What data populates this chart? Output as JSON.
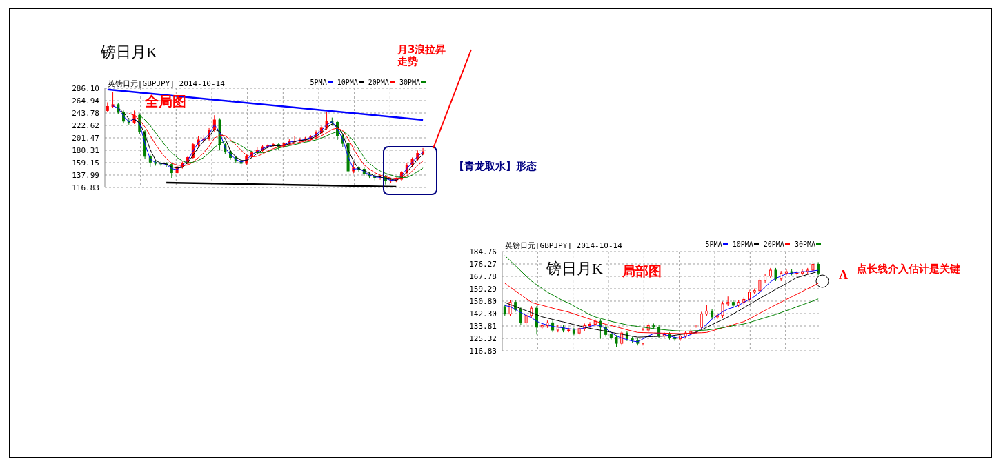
{
  "chart_data": [
    {
      "type": "candlestick",
      "title": "英镑日元[GBPJPY] 2014-10-14",
      "categories": [
        null,
        null,
        null,
        null,
        null,
        null,
        null,
        null,
        null,
        null,
        null,
        null,
        null,
        null,
        null,
        null,
        null,
        null,
        null,
        null,
        null,
        null,
        null,
        null,
        null,
        null,
        null,
        null,
        null,
        null,
        null,
        null,
        null,
        null,
        null,
        null,
        null,
        null,
        null,
        null,
        null,
        null,
        null,
        null,
        null,
        null,
        null,
        null,
        null,
        null,
        null,
        null,
        null,
        null,
        null,
        null,
        null,
        null,
        null,
        null
      ],
      "ohlc": [
        [
          248,
          262,
          245,
          255
        ],
        [
          255,
          280,
          252,
          258
        ],
        [
          258,
          261,
          242,
          245
        ],
        [
          245,
          248,
          226,
          230
        ],
        [
          230,
          233,
          224,
          228
        ],
        [
          228,
          248,
          225,
          240
        ],
        [
          240,
          243,
          208,
          212
        ],
        [
          212,
          215,
          165,
          170
        ],
        [
          170,
          173,
          152,
          160
        ],
        [
          160,
          163,
          154,
          158
        ],
        [
          158,
          161,
          153,
          157
        ],
        [
          157,
          160,
          152,
          156
        ],
        [
          156,
          159,
          133,
          142
        ],
        [
          142,
          155,
          139,
          152
        ],
        [
          152,
          161,
          149,
          158
        ],
        [
          158,
          171,
          155,
          168
        ],
        [
          168,
          193,
          165,
          190
        ],
        [
          190,
          205,
          186,
          198
        ],
        [
          198,
          206,
          194,
          200
        ],
        [
          200,
          218,
          197,
          215
        ],
        [
          215,
          240,
          212,
          232
        ],
        [
          232,
          235,
          180,
          190
        ],
        [
          190,
          193,
          174,
          178
        ],
        [
          178,
          181,
          164,
          168
        ],
        [
          168,
          171,
          158,
          162
        ],
        [
          162,
          166,
          150,
          158
        ],
        [
          158,
          173,
          155,
          170
        ],
        [
          170,
          179,
          167,
          176
        ],
        [
          176,
          186,
          173,
          180
        ],
        [
          180,
          189,
          177,
          186
        ],
        [
          186,
          191,
          183,
          188
        ],
        [
          188,
          193,
          185,
          190
        ],
        [
          190,
          193,
          180,
          186
        ],
        [
          186,
          195,
          183,
          192
        ],
        [
          192,
          199,
          189,
          196
        ],
        [
          196,
          204,
          193,
          196
        ],
        [
          196,
          201,
          193,
          198
        ],
        [
          198,
          203,
          195,
          200
        ],
        [
          200,
          206,
          197,
          203
        ],
        [
          203,
          214,
          200,
          210
        ],
        [
          210,
          222,
          207,
          218
        ],
        [
          218,
          245,
          215,
          230
        ],
        [
          230,
          236,
          222,
          228
        ],
        [
          228,
          231,
          198,
          205
        ],
        [
          205,
          208,
          185,
          192
        ],
        [
          192,
          195,
          125,
          145
        ],
        [
          145,
          160,
          141,
          150
        ],
        [
          150,
          153,
          144,
          148
        ],
        [
          148,
          151,
          136,
          140
        ],
        [
          140,
          143,
          132,
          136
        ],
        [
          136,
          139,
          129,
          133
        ],
        [
          133,
          138,
          130,
          135
        ],
        [
          135,
          138,
          122,
          128
        ],
        [
          128,
          132,
          124,
          129
        ],
        [
          129,
          134,
          126,
          131
        ],
        [
          131,
          145,
          128,
          142
        ],
        [
          142,
          158,
          139,
          155
        ],
        [
          155,
          168,
          152,
          165
        ],
        [
          165,
          180,
          162,
          175
        ],
        [
          175,
          184,
          172,
          178
        ]
      ],
      "series": [
        {
          "name": "5PMA",
          "type": "line",
          "color": "#0000ff",
          "values": [
            null,
            256,
            252,
            238,
            229,
            234,
            226,
            191,
            165,
            159,
            158,
            156,
            149,
            147,
            155,
            163,
            179,
            194,
            199,
            208,
            224,
            211,
            184,
            173,
            165,
            160,
            164,
            173,
            178,
            183,
            187,
            189,
            188,
            189,
            194,
            196,
            197,
            199,
            202,
            207,
            214,
            224,
            229,
            217,
            199,
            169,
            148,
            149,
            144,
            138,
            135,
            134,
            132,
            129,
            130,
            137,
            149,
            160,
            170,
            177
          ]
        },
        {
          "name": "10PMA",
          "type": "line",
          "color": "#000000",
          "values": [
            null,
            null,
            253,
            244,
            234,
            233,
            227,
            207,
            181,
            163,
            158,
            157,
            152,
            150,
            151,
            159,
            172,
            185,
            196,
            204,
            216,
            212,
            200,
            179,
            169,
            163,
            163,
            168,
            175,
            181,
            185,
            188,
            188,
            189,
            191,
            195,
            197,
            198,
            200,
            204,
            210,
            219,
            225,
            221,
            208,
            181,
            162,
            148,
            146,
            141,
            136,
            135,
            132,
            131,
            129,
            134,
            143,
            154,
            165,
            173
          ]
        },
        {
          "name": "20PMA",
          "type": "line",
          "color": "#ff0000",
          "values": [
            null,
            null,
            null,
            null,
            243,
            240,
            232,
            220,
            205,
            190,
            177,
            166,
            158,
            155,
            154,
            155,
            160,
            168,
            176,
            187,
            201,
            206,
            205,
            198,
            190,
            180,
            172,
            169,
            170,
            174,
            179,
            183,
            186,
            188,
            190,
            192,
            194,
            196,
            198,
            201,
            205,
            210,
            216,
            218,
            214,
            200,
            183,
            168,
            155,
            148,
            142,
            138,
            135,
            133,
            131,
            132,
            137,
            145,
            154,
            162
          ]
        },
        {
          "name": "30PMA",
          "type": "line",
          "color": "#008000",
          "values": [
            null,
            null,
            null,
            null,
            null,
            null,
            240,
            232,
            222,
            210,
            198,
            186,
            176,
            168,
            162,
            159,
            160,
            163,
            168,
            176,
            185,
            192,
            196,
            196,
            193,
            188,
            182,
            178,
            176,
            176,
            178,
            181,
            184,
            186,
            188,
            190,
            192,
            194,
            196,
            198,
            201,
            205,
            209,
            212,
            212,
            207,
            196,
            182,
            168,
            158,
            150,
            145,
            141,
            138,
            135,
            134,
            134,
            138,
            144,
            150
          ]
        },
        {
          "type": "line",
          "color": "#0000ff",
          "values": [
            284,
            null,
            null,
            null,
            null,
            null,
            null,
            null,
            null,
            null,
            null,
            null,
            null,
            null,
            null,
            null,
            null,
            null,
            null,
            null,
            null,
            null,
            null,
            null,
            null,
            null,
            null,
            null,
            null,
            null,
            null,
            null,
            null,
            null,
            null,
            null,
            null,
            null,
            null,
            null,
            null,
            null,
            null,
            null,
            null,
            null,
            null,
            null,
            null,
            null,
            null,
            null,
            null,
            null,
            null,
            null,
            null,
            null,
            null,
            232
          ]
        },
        {
          "type": "line",
          "color": "#000000",
          "values": [
            null,
            null,
            null,
            null,
            null,
            null,
            null,
            null,
            null,
            null,
            null,
            125,
            null,
            null,
            null,
            null,
            null,
            null,
            null,
            null,
            null,
            null,
            null,
            null,
            null,
            null,
            null,
            null,
            null,
            null,
            null,
            null,
            null,
            null,
            null,
            null,
            null,
            null,
            null,
            null,
            null,
            null,
            null,
            null,
            null,
            null,
            null,
            null,
            null,
            null,
            null,
            null,
            null,
            null,
            118,
            null,
            null,
            null,
            null,
            null
          ]
        }
      ],
      "ylim": [
        116.83,
        286.1
      ],
      "yticks": [
        116.83,
        137.99,
        159.15,
        180.31,
        201.47,
        222.62,
        243.78,
        264.94,
        {
          "value": 286.1,
          "label": "286.10"
        }
      ],
      "grid": true,
      "legend": "top right",
      "tick_labels": "y",
      "annotations": [
        "镑日月K",
        "全局图",
        "月3浪拉昇走势",
        "【青龙取水】形态"
      ]
    },
    {
      "type": "candlestick",
      "title": "英镑日元[GBPJPY] 2014-10-14",
      "categories": [
        null,
        null,
        null,
        null,
        null,
        null,
        null,
        null,
        null,
        null,
        null,
        null,
        null,
        null,
        null,
        null,
        null,
        null,
        null,
        null,
        null,
        null,
        null,
        null,
        null,
        null,
        null,
        null,
        null,
        null,
        null,
        null,
        null,
        null,
        null,
        null,
        null,
        null,
        null,
        null,
        null,
        null,
        null,
        null,
        null,
        null,
        null,
        null,
        null,
        null,
        null,
        null,
        null,
        null,
        null,
        null,
        null,
        null,
        null,
        null
      ],
      "ohlc": [
        [
          147,
          148.5,
          140.5,
          142
        ],
        [
          142,
          151.5,
          140.5,
          150
        ],
        [
          150,
          151.5,
          143.5,
          145
        ],
        [
          145,
          146.5,
          134.5,
          136
        ],
        [
          136,
          142.5,
          133,
          141
        ],
        [
          141,
          147.5,
          139.5,
          146
        ],
        [
          146,
          147.5,
          128,
          133
        ],
        [
          133,
          135.5,
          131.5,
          134
        ],
        [
          134,
          137.5,
          132.5,
          136
        ],
        [
          136,
          137.5,
          129.5,
          131
        ],
        [
          131,
          134.5,
          129.5,
          133
        ],
        [
          133,
          134.5,
          129.5,
          131
        ],
        [
          131,
          132.5,
          129.5,
          131
        ],
        [
          131,
          132.5,
          127.5,
          129
        ],
        [
          129,
          133.5,
          127.5,
          132
        ],
        [
          132,
          135.5,
          130.5,
          134
        ],
        [
          134,
          136.5,
          132.5,
          135
        ],
        [
          135,
          138.5,
          133.5,
          137
        ],
        [
          137,
          138.5,
          125,
          133
        ],
        [
          133,
          134.5,
          126.5,
          128
        ],
        [
          128,
          129.5,
          124.5,
          126
        ],
        [
          126,
          127.5,
          119.5,
          122
        ],
        [
          122,
          130.5,
          120.5,
          129
        ],
        [
          129,
          130.5,
          123.5,
          125
        ],
        [
          125,
          126.5,
          122.5,
          124
        ],
        [
          124,
          125.5,
          120.5,
          122
        ],
        [
          122,
          132.5,
          120.5,
          131
        ],
        [
          131,
          135.5,
          129.5,
          134
        ],
        [
          134,
          135.5,
          131.5,
          133
        ],
        [
          133,
          134.5,
          125.5,
          127
        ],
        [
          127,
          129.5,
          125.5,
          128
        ],
        [
          128,
          129.5,
          124.5,
          126
        ],
        [
          126,
          127.5,
          123.5,
          125
        ],
        [
          125,
          128.5,
          123.5,
          127
        ],
        [
          127,
          130.5,
          125.5,
          129
        ],
        [
          129,
          131.5,
          127.5,
          130
        ],
        [
          130,
          134.5,
          128.5,
          133
        ],
        [
          133,
          143.5,
          131.5,
          142
        ],
        [
          142,
          148,
          140.5,
          144
        ],
        [
          144,
          145.5,
          138.5,
          140
        ],
        [
          140,
          142.5,
          138.5,
          141
        ],
        [
          141,
          150.5,
          139.5,
          149
        ],
        [
          149,
          154,
          147.5,
          150
        ],
        [
          150,
          151.5,
          146.5,
          148
        ],
        [
          148,
          151.5,
          146.5,
          150
        ],
        [
          150,
          153.5,
          148.5,
          152
        ],
        [
          152,
          158.5,
          150.5,
          157
        ],
        [
          157,
          159.5,
          155.5,
          158
        ],
        [
          158,
          166.5,
          156.5,
          165
        ],
        [
          165,
          169.5,
          163.5,
          168
        ],
        [
          168,
          173.5,
          166.5,
          172
        ],
        [
          172,
          173.5,
          164.5,
          166
        ],
        [
          166,
          171.5,
          164.5,
          170
        ],
        [
          170,
          172.5,
          168.5,
          171
        ],
        [
          171,
          172.5,
          168.5,
          170
        ],
        [
          170,
          171.5,
          168.5,
          170
        ],
        [
          170,
          172.5,
          168.5,
          171
        ],
        [
          171,
          173.5,
          169.5,
          172
        ],
        [
          172,
          178,
          170.5,
          176
        ],
        [
          176,
          177.5,
          168.5,
          170
        ]
      ],
      "series": [
        {
          "name": "5PMA",
          "type": "line",
          "color": "#0000ff",
          "values": [
            147.8,
            147,
            145,
            143,
            141,
            139.5,
            137,
            135.5,
            134.5,
            133.5,
            133,
            132.5,
            132,
            131.5,
            131.8,
            132.5,
            133.5,
            134.5,
            134,
            132,
            129.5,
            127,
            125.5,
            124.5,
            123.5,
            123,
            125,
            127,
            128.5,
            129,
            128,
            127,
            126,
            125.5,
            126.5,
            128,
            129.5,
            132,
            135,
            138.5,
            141,
            143.5,
            145.5,
            146.5,
            148,
            150,
            152,
            154,
            157,
            160.5,
            164,
            166.5,
            168,
            169.5,
            170,
            170.5,
            171,
            171,
            171.5,
            172
          ]
        },
        {
          "name": "10PMA",
          "type": "line",
          "color": "#000000",
          "values": [
            149.9,
            148.5,
            147.1,
            145.7,
            144.3,
            142.9,
            141.5,
            140.1,
            139.2,
            138.3,
            137.4,
            136.6,
            135.7,
            134.8,
            133.9,
            133,
            132.2,
            131.5,
            130.9,
            130.2,
            129.5,
            128.8,
            128.2,
            127.5,
            126.8,
            126.2,
            126.3,
            126.5,
            126.6,
            126.7,
            126.9,
            127,
            127.5,
            128,
            128.4,
            128.9,
            129.4,
            131.2,
            132.9,
            134.7,
            136.5,
            138.2,
            140,
            142.1,
            144.2,
            146.3,
            148.5,
            150.6,
            152.7,
            154.8,
            156.8,
            158.9,
            160.9,
            162.9,
            165,
            167,
            168,
            169.1,
            170.1,
            171.2
          ]
        },
        {
          "name": "20PMA",
          "type": "line",
          "color": "#ff0000",
          "values": [
            163,
            160.4,
            157.8,
            155.2,
            152.6,
            149.9,
            148.9,
            148,
            147,
            146,
            145,
            144.2,
            143.3,
            142.1,
            140.9,
            139.7,
            138.5,
            137.2,
            136,
            135,
            134.1,
            133.2,
            132.2,
            131.2,
            130.3,
            129.4,
            129.3,
            129.2,
            129.1,
            129,
            128.9,
            128.8,
            128.7,
            128.6,
            128.8,
            128.9,
            129.1,
            129.2,
            129.4,
            130.5,
            131.5,
            132.6,
            133.6,
            134.7,
            135.8,
            136.8,
            138.7,
            140.6,
            142.6,
            144.5,
            146.4,
            148.3,
            150.1,
            152,
            153.8,
            155.6,
            157.5,
            159.3,
            161.1,
            163
          ]
        },
        {
          "name": "30PMA",
          "type": "line",
          "color": "#008000",
          "values": [
            182,
            178.5,
            175,
            171.5,
            168,
            164.6,
            162,
            159.5,
            157,
            155,
            153,
            151,
            149.5,
            147.5,
            145.5,
            143.5,
            141.5,
            140,
            139,
            138,
            137,
            136.2,
            135.4,
            134.6,
            134,
            133.5,
            133,
            132.5,
            132,
            131.6,
            131.2,
            130.9,
            130.6,
            130.4,
            130.3,
            130.4,
            130.6,
            130.8,
            131,
            131.5,
            132,
            132.6,
            133.3,
            134,
            134.6,
            135.2,
            136.2,
            137.3,
            138.4,
            139.5,
            140.6,
            141.7,
            143,
            144.3,
            145.6,
            147,
            148.3,
            149.6,
            150.9,
            152.3
          ]
        }
      ],
      "ylim": [
        116.83,
        184.76
      ],
      "yticks": [
        116.83,
        125.32,
        133.81,
        {
          "value": 142.3,
          "label": "142.30"
        },
        {
          "value": 150.8,
          "label": "150.80"
        },
        159.29,
        167.78,
        176.27,
        184.76
      ],
      "grid": true,
      "legend": "top right",
      "tick_labels": "y",
      "annotations": [
        "镑日月K",
        "局部图",
        "A",
        "点长线介入估计是关键"
      ]
    }
  ]
}
